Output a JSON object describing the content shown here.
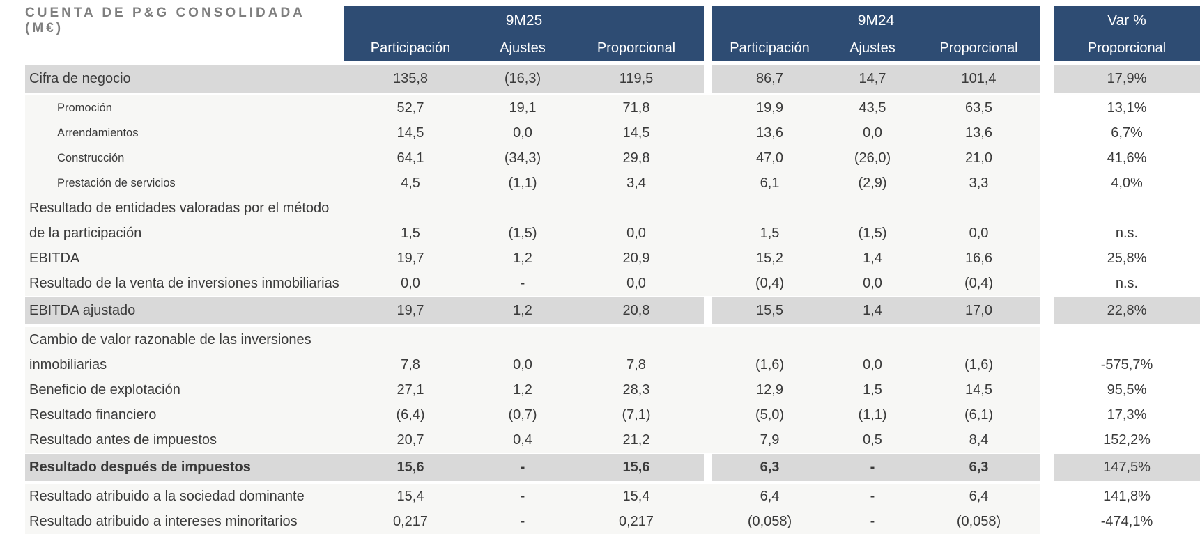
{
  "title": "CUENTA DE P&G CONSOLIDADA (M€)",
  "colors": {
    "header_bg": "#2e4c73",
    "header_text": "#ffffff",
    "highlight_band_bg": "#d9d9d9",
    "table_area_bg": "#f7f7f5",
    "var_column_bg": "#ffffff",
    "title_text": "#7f7f7f",
    "body_text": "#3a3a3a"
  },
  "header": {
    "groups": [
      {
        "label": "9M25",
        "cols": [
          "Participación",
          "Ajustes",
          "Proporcional"
        ]
      },
      {
        "label": "9M24",
        "cols": [
          "Participación",
          "Ajustes",
          "Proporcional"
        ]
      },
      {
        "label": "Var %",
        "cols": [
          "Proporcional"
        ]
      }
    ]
  },
  "rows": [
    {
      "style": "band",
      "label": "Cifra de negocio",
      "m25": [
        "135,8",
        "(16,3)",
        "119,5"
      ],
      "m24": [
        "86,7",
        "14,7",
        "101,4"
      ],
      "var": "17,9%"
    },
    {
      "style": "sub",
      "label": "Promoción",
      "m25": [
        "52,7",
        "19,1",
        "71,8"
      ],
      "m24": [
        "19,9",
        "43,5",
        "63,5"
      ],
      "var": "13,1%"
    },
    {
      "style": "sub",
      "label": "Arrendamientos",
      "m25": [
        "14,5",
        "0,0",
        "14,5"
      ],
      "m24": [
        "13,6",
        "0,0",
        "13,6"
      ],
      "var": "6,7%"
    },
    {
      "style": "sub",
      "label": "Construcción",
      "m25": [
        "64,1",
        "(34,3)",
        "29,8"
      ],
      "m24": [
        "47,0",
        "(26,0)",
        "21,0"
      ],
      "var": "41,6%"
    },
    {
      "style": "sub",
      "label": "Prestación de servicios",
      "m25": [
        "4,5",
        "(1,1)",
        "3,4"
      ],
      "m24": [
        "6,1",
        "(2,9)",
        "3,3"
      ],
      "var": "4,0%"
    },
    {
      "style": "normal",
      "label": "Resultado de entidades valoradas por el método",
      "label2": "de la participación",
      "m25": [
        "1,5",
        "(1,5)",
        "0,0"
      ],
      "m24": [
        "1,5",
        "(1,5)",
        "0,0"
      ],
      "var": "n.s."
    },
    {
      "style": "normal",
      "label": "EBITDA",
      "m25": [
        "19,7",
        "1,2",
        "20,9"
      ],
      "m24": [
        "15,2",
        "1,4",
        "16,6"
      ],
      "var": "25,8%"
    },
    {
      "style": "normal",
      "label": "Resultado de la venta de inversiones inmobiliarias",
      "m25": [
        "0,0",
        "-",
        "0,0"
      ],
      "m24": [
        "(0,4)",
        "0,0",
        "(0,4)"
      ],
      "var": "n.s."
    },
    {
      "style": "band",
      "label": "EBITDA ajustado",
      "m25": [
        "19,7",
        "1,2",
        "20,8"
      ],
      "m24": [
        "15,5",
        "1,4",
        "17,0"
      ],
      "var": "22,8%"
    },
    {
      "style": "normal",
      "label": "Cambio de valor razonable de las inversiones",
      "label2": "inmobiliarias",
      "m25": [
        "7,8",
        "0,0",
        "7,8"
      ],
      "m24": [
        "(1,6)",
        "0,0",
        "(1,6)"
      ],
      "var": "-575,7%"
    },
    {
      "style": "normal",
      "label": "Beneficio de explotación",
      "m25": [
        "27,1",
        "1,2",
        "28,3"
      ],
      "m24": [
        "12,9",
        "1,5",
        "14,5"
      ],
      "var": "95,5%"
    },
    {
      "style": "normal",
      "label": "Resultado financiero",
      "m25": [
        "(6,4)",
        "(0,7)",
        "(7,1)"
      ],
      "m24": [
        "(5,0)",
        "(1,1)",
        "(6,1)"
      ],
      "var": "17,3%"
    },
    {
      "style": "normal",
      "label": "Resultado antes de impuestos",
      "m25": [
        "20,7",
        "0,4",
        "21,2"
      ],
      "m24": [
        "7,9",
        "0,5",
        "8,4"
      ],
      "var": "152,2%"
    },
    {
      "style": "band bold",
      "label": "Resultado después de impuestos",
      "m25": [
        "15,6",
        "-",
        "15,6"
      ],
      "m24": [
        "6,3",
        "-",
        "6,3"
      ],
      "var": "147,5%"
    },
    {
      "style": "normal",
      "label": "Resultado atribuido a la sociedad dominante",
      "m25": [
        "15,4",
        "-",
        "15,4"
      ],
      "m24": [
        "6,4",
        "-",
        "6,4"
      ],
      "var": "141,8%"
    },
    {
      "style": "normal",
      "label": "Resultado atribuido a intereses minoritarios",
      "m25": [
        "0,217",
        "-",
        "0,217"
      ],
      "m24": [
        "(0,058)",
        "-",
        "(0,058)"
      ],
      "var": "-474,1%"
    }
  ]
}
